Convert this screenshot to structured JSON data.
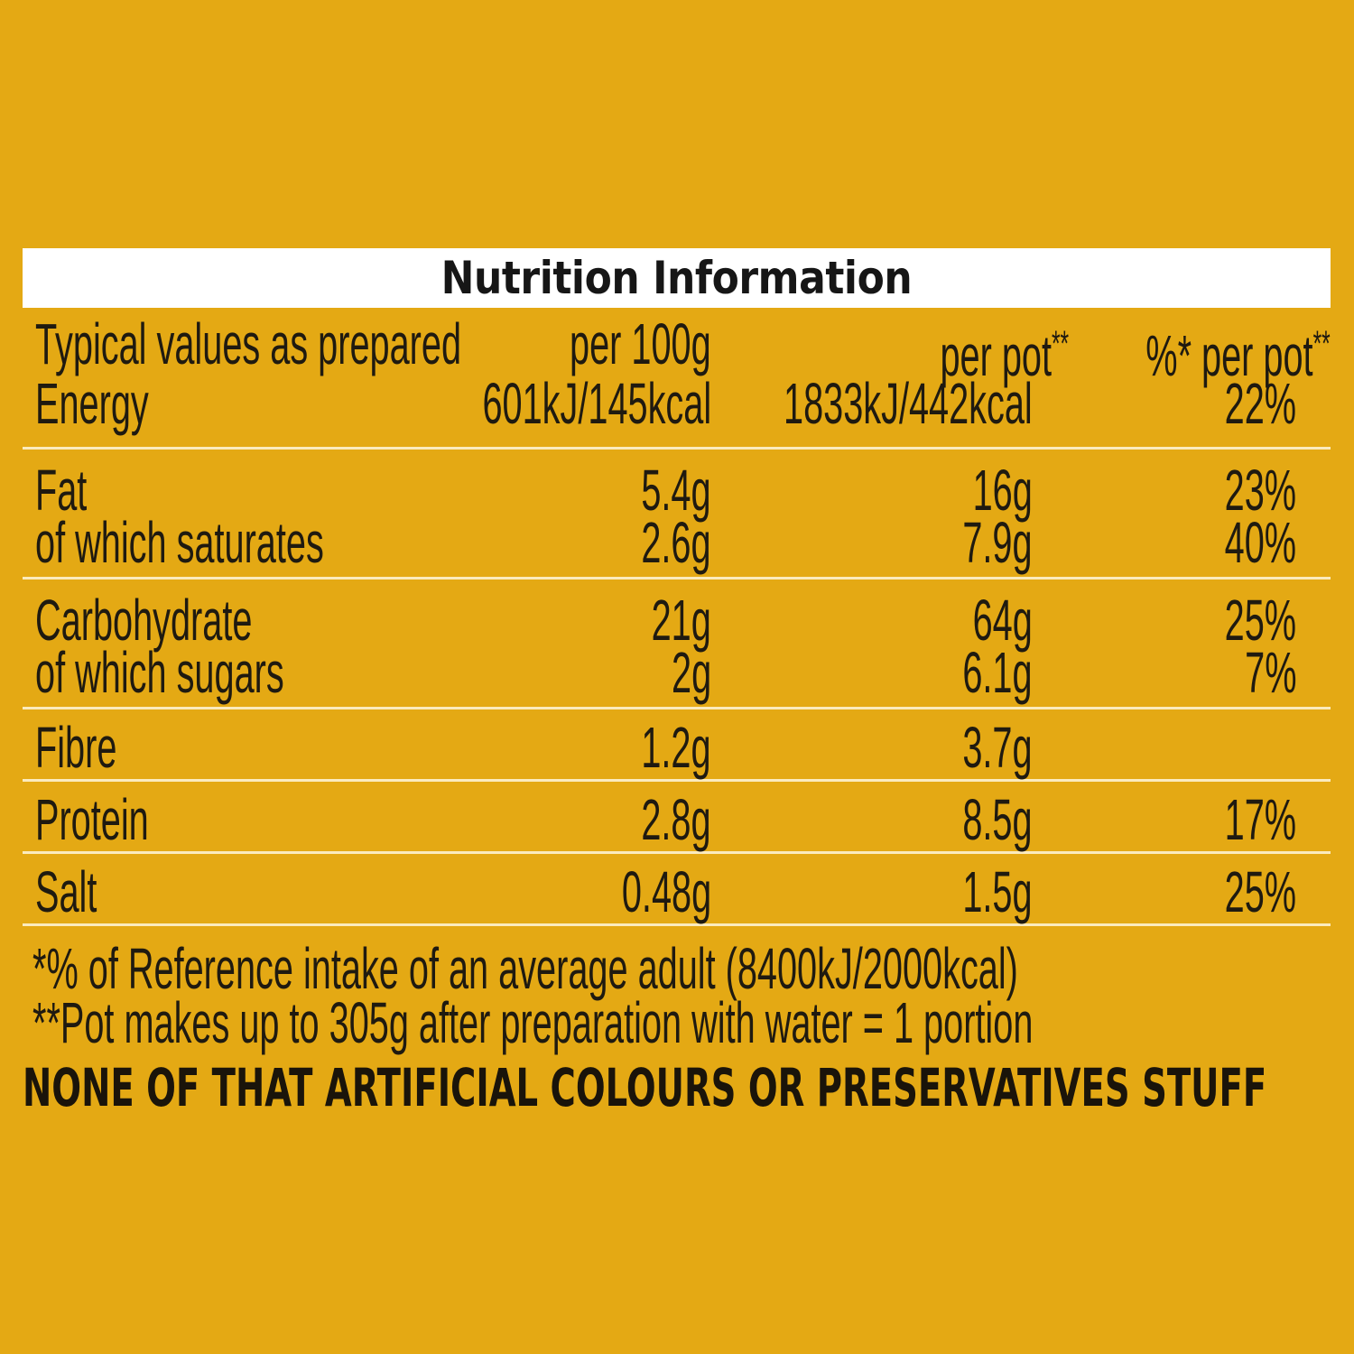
{
  "title": "Nutrition Information",
  "header": {
    "label": "Typical values as prepared",
    "col1": "per 100g",
    "col2": "per pot",
    "col2_sup": "**",
    "col3": "%* per pot",
    "col3_sup": "**"
  },
  "energy": {
    "label": "Energy",
    "per100": "601kJ/145kcal",
    "perpot": "1833kJ/442kcal",
    "ri": "22%"
  },
  "fat": {
    "label": "Fat",
    "per100": "5.4g",
    "perpot": "16g",
    "ri": "23%"
  },
  "saturates": {
    "label": "of which saturates",
    "per100": "2.6g",
    "perpot": "7.9g",
    "ri": "40%"
  },
  "carbohydrate": {
    "label": "Carbohydrate",
    "per100": "21g",
    "perpot": "64g",
    "ri": "25%"
  },
  "sugars": {
    "label": "of which sugars",
    "per100": "2g",
    "perpot": "6.1g",
    "ri": "7%"
  },
  "fibre": {
    "label": "Fibre",
    "per100": "1.2g",
    "perpot": "3.7g",
    "ri": ""
  },
  "protein": {
    "label": "Protein",
    "per100": "2.8g",
    "perpot": "8.5g",
    "ri": "17%"
  },
  "salt": {
    "label": "Salt",
    "per100": "0.48g",
    "perpot": "1.5g",
    "ri": "25%"
  },
  "footnotes": [
    "*% of Reference intake of an average adult (8400kJ/2000kcal)",
    "**Pot makes up to 305g after preparation with water = 1 portion"
  ],
  "tagline": "NONE OF THAT ARTIFICIAL COLOURS OR PRESERVATIVES STUFF",
  "colors": {
    "background": "#E4A914",
    "title_bar": "#FFFFFF",
    "divider": "#FBEBBE",
    "text": "#1F1A10"
  }
}
